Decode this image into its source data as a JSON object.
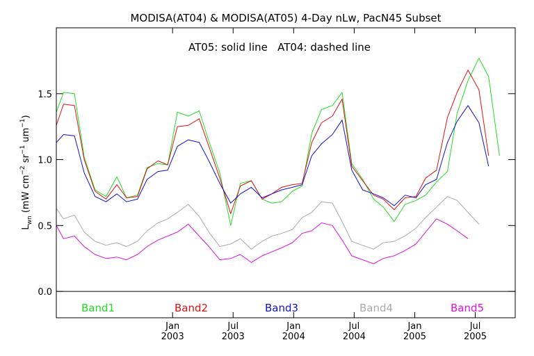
{
  "colors": {
    "background": "#ffffff",
    "axis": "#000000",
    "band1": "#22dd22",
    "band2": "#dd1111",
    "band3": "#1111cc",
    "band4": "#aaaaaa",
    "band5": "#dd11dd"
  },
  "chart_data": {
    "type": "line",
    "title": "MODISA(AT04) & MODISA(AT05) 4-Day nLw, PacN45 Subset",
    "annotation": "AT05: solid line   AT04: dashed line",
    "ylabel": {
      "prefix": "L",
      "prefix_sub": "wn",
      "text": " (mW cm",
      "sup1": "−2",
      "mid1": " sr",
      "sup2": "−1",
      "mid2": " um",
      "sup3": "−1",
      "suffix": ")"
    },
    "xlim": [
      2002.04,
      2005.83
    ],
    "ylim": [
      -0.2,
      2.0
    ],
    "yticks": [
      {
        "value": 0.0,
        "label": "0.0"
      },
      {
        "value": 0.5,
        "label": "0.5"
      },
      {
        "value": 1.0,
        "label": "1.0"
      },
      {
        "value": 1.5,
        "label": "1.5"
      }
    ],
    "xticks": [
      {
        "value": 2003.0,
        "month": "Jan",
        "year": "2003"
      },
      {
        "value": 2003.5,
        "month": "Jul",
        "year": "2003"
      },
      {
        "value": 2004.0,
        "month": "Jan",
        "year": "2004"
      },
      {
        "value": 2004.5,
        "month": "Jul",
        "year": "2004"
      },
      {
        "value": 2005.0,
        "month": "Jan",
        "year": "2005"
      },
      {
        "value": 2005.5,
        "month": "Jul",
        "year": "2005"
      }
    ],
    "x": [
      2002.04,
      2002.1,
      2002.19,
      2002.27,
      2002.36,
      2002.45,
      2002.54,
      2002.62,
      2002.71,
      2002.79,
      2002.88,
      2002.96,
      2003.04,
      2003.13,
      2003.22,
      2003.3,
      2003.39,
      2003.48,
      2003.56,
      2003.65,
      2003.74,
      2003.82,
      2003.9,
      2003.99,
      2004.07,
      2004.15,
      2004.23,
      2004.32,
      2004.4,
      2004.48,
      2004.57,
      2004.66,
      2004.74,
      2004.83,
      2004.92,
      2005.01,
      2005.09,
      2005.18,
      2005.27,
      2005.35,
      2005.44,
      2005.53,
      2005.61,
      2005.7,
      2005.78,
      2005.83
    ],
    "series": [
      {
        "name": "Band1",
        "color_key": "band1",
        "values": [
          1.36,
          1.51,
          1.5,
          1.02,
          0.77,
          0.72,
          0.87,
          0.71,
          0.73,
          0.94,
          0.97,
          0.96,
          1.36,
          1.33,
          1.37,
          1.14,
          0.9,
          0.5,
          0.82,
          0.84,
          0.7,
          0.67,
          0.68,
          0.76,
          0.8,
          1.2,
          1.38,
          1.41,
          1.51,
          0.97,
          0.85,
          0.7,
          0.64,
          0.53,
          0.66,
          0.69,
          0.73,
          0.83,
          0.91,
          1.35,
          1.6,
          1.77,
          1.63,
          1.03,
          null,
          null
        ]
      },
      {
        "name": "Band2",
        "color_key": "band2",
        "values": [
          1.26,
          1.42,
          1.41,
          1.0,
          0.76,
          0.7,
          0.81,
          0.71,
          0.72,
          0.93,
          0.99,
          0.96,
          1.25,
          1.26,
          1.31,
          1.1,
          0.86,
          0.59,
          0.8,
          0.84,
          0.7,
          0.74,
          0.79,
          0.81,
          0.82,
          1.13,
          1.28,
          1.33,
          1.46,
          0.95,
          0.84,
          0.73,
          0.7,
          0.62,
          0.71,
          0.72,
          0.86,
          0.92,
          1.32,
          1.51,
          1.68,
          1.53,
          1.03,
          null,
          null,
          null
        ]
      },
      {
        "name": "Band3",
        "color_key": "band3",
        "values": [
          1.13,
          1.19,
          1.18,
          0.9,
          0.72,
          0.68,
          0.74,
          0.68,
          0.7,
          0.85,
          0.91,
          0.92,
          1.1,
          1.15,
          1.13,
          0.99,
          0.82,
          0.67,
          0.74,
          0.79,
          0.71,
          0.74,
          0.77,
          0.79,
          0.81,
          1.03,
          1.12,
          1.19,
          1.3,
          0.92,
          0.77,
          0.74,
          0.71,
          0.65,
          0.73,
          0.71,
          0.81,
          0.85,
          1.13,
          1.29,
          1.41,
          1.28,
          0.95,
          null,
          null,
          null
        ]
      },
      {
        "name": "Band4",
        "color_key": "band4",
        "values": [
          0.63,
          0.55,
          0.58,
          0.45,
          0.38,
          0.35,
          0.37,
          0.34,
          0.38,
          0.46,
          0.52,
          0.55,
          0.6,
          0.66,
          0.57,
          0.45,
          0.34,
          0.36,
          0.4,
          0.32,
          0.38,
          0.42,
          0.44,
          0.47,
          0.56,
          0.6,
          0.68,
          0.67,
          0.53,
          0.38,
          0.35,
          0.32,
          0.37,
          0.38,
          0.42,
          0.48,
          0.56,
          0.64,
          0.72,
          0.69,
          0.6,
          0.51,
          null,
          null,
          null,
          null
        ]
      },
      {
        "name": "Band5",
        "color_key": "band5",
        "values": [
          0.5,
          0.4,
          0.42,
          0.34,
          0.28,
          0.25,
          0.26,
          0.24,
          0.28,
          0.34,
          0.39,
          0.42,
          0.45,
          0.51,
          0.42,
          0.34,
          0.24,
          0.25,
          0.28,
          0.22,
          0.27,
          0.3,
          0.33,
          0.37,
          0.44,
          0.46,
          0.52,
          0.5,
          0.39,
          0.27,
          0.24,
          0.21,
          0.25,
          0.27,
          0.31,
          0.36,
          0.45,
          0.55,
          0.51,
          0.46,
          0.4,
          null,
          null,
          null,
          null,
          null
        ]
      }
    ],
    "grid": false,
    "legend_position": "bottom"
  }
}
